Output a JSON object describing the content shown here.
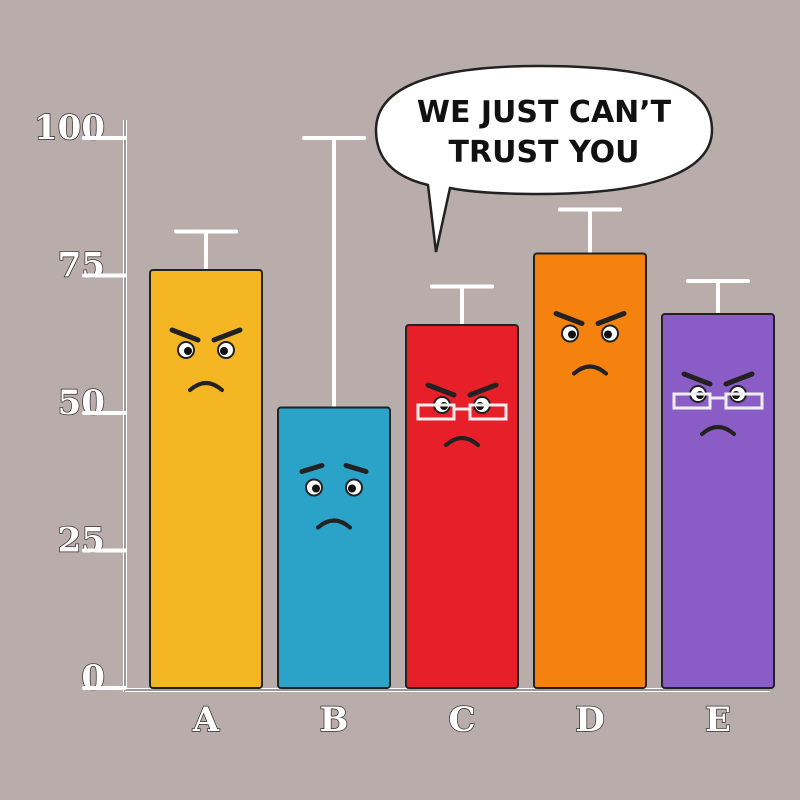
{
  "chart_data": {
    "type": "bar",
    "annotation": [
      "WE JUST CAN’T",
      "TRUST YOU"
    ],
    "categories": [
      "A",
      "B",
      "C",
      "D",
      "E"
    ],
    "values": [
      76,
      51,
      66,
      79,
      68
    ],
    "errors": [
      7,
      49,
      7,
      8,
      6
    ],
    "colors": [
      "#f4b622",
      "#2ba2c8",
      "#e61f29",
      "#f5820f",
      "#8a5dc6"
    ],
    "ylim": [
      0,
      100
    ],
    "yticks": [
      0,
      25,
      50,
      75,
      100
    ],
    "grid": false
  }
}
